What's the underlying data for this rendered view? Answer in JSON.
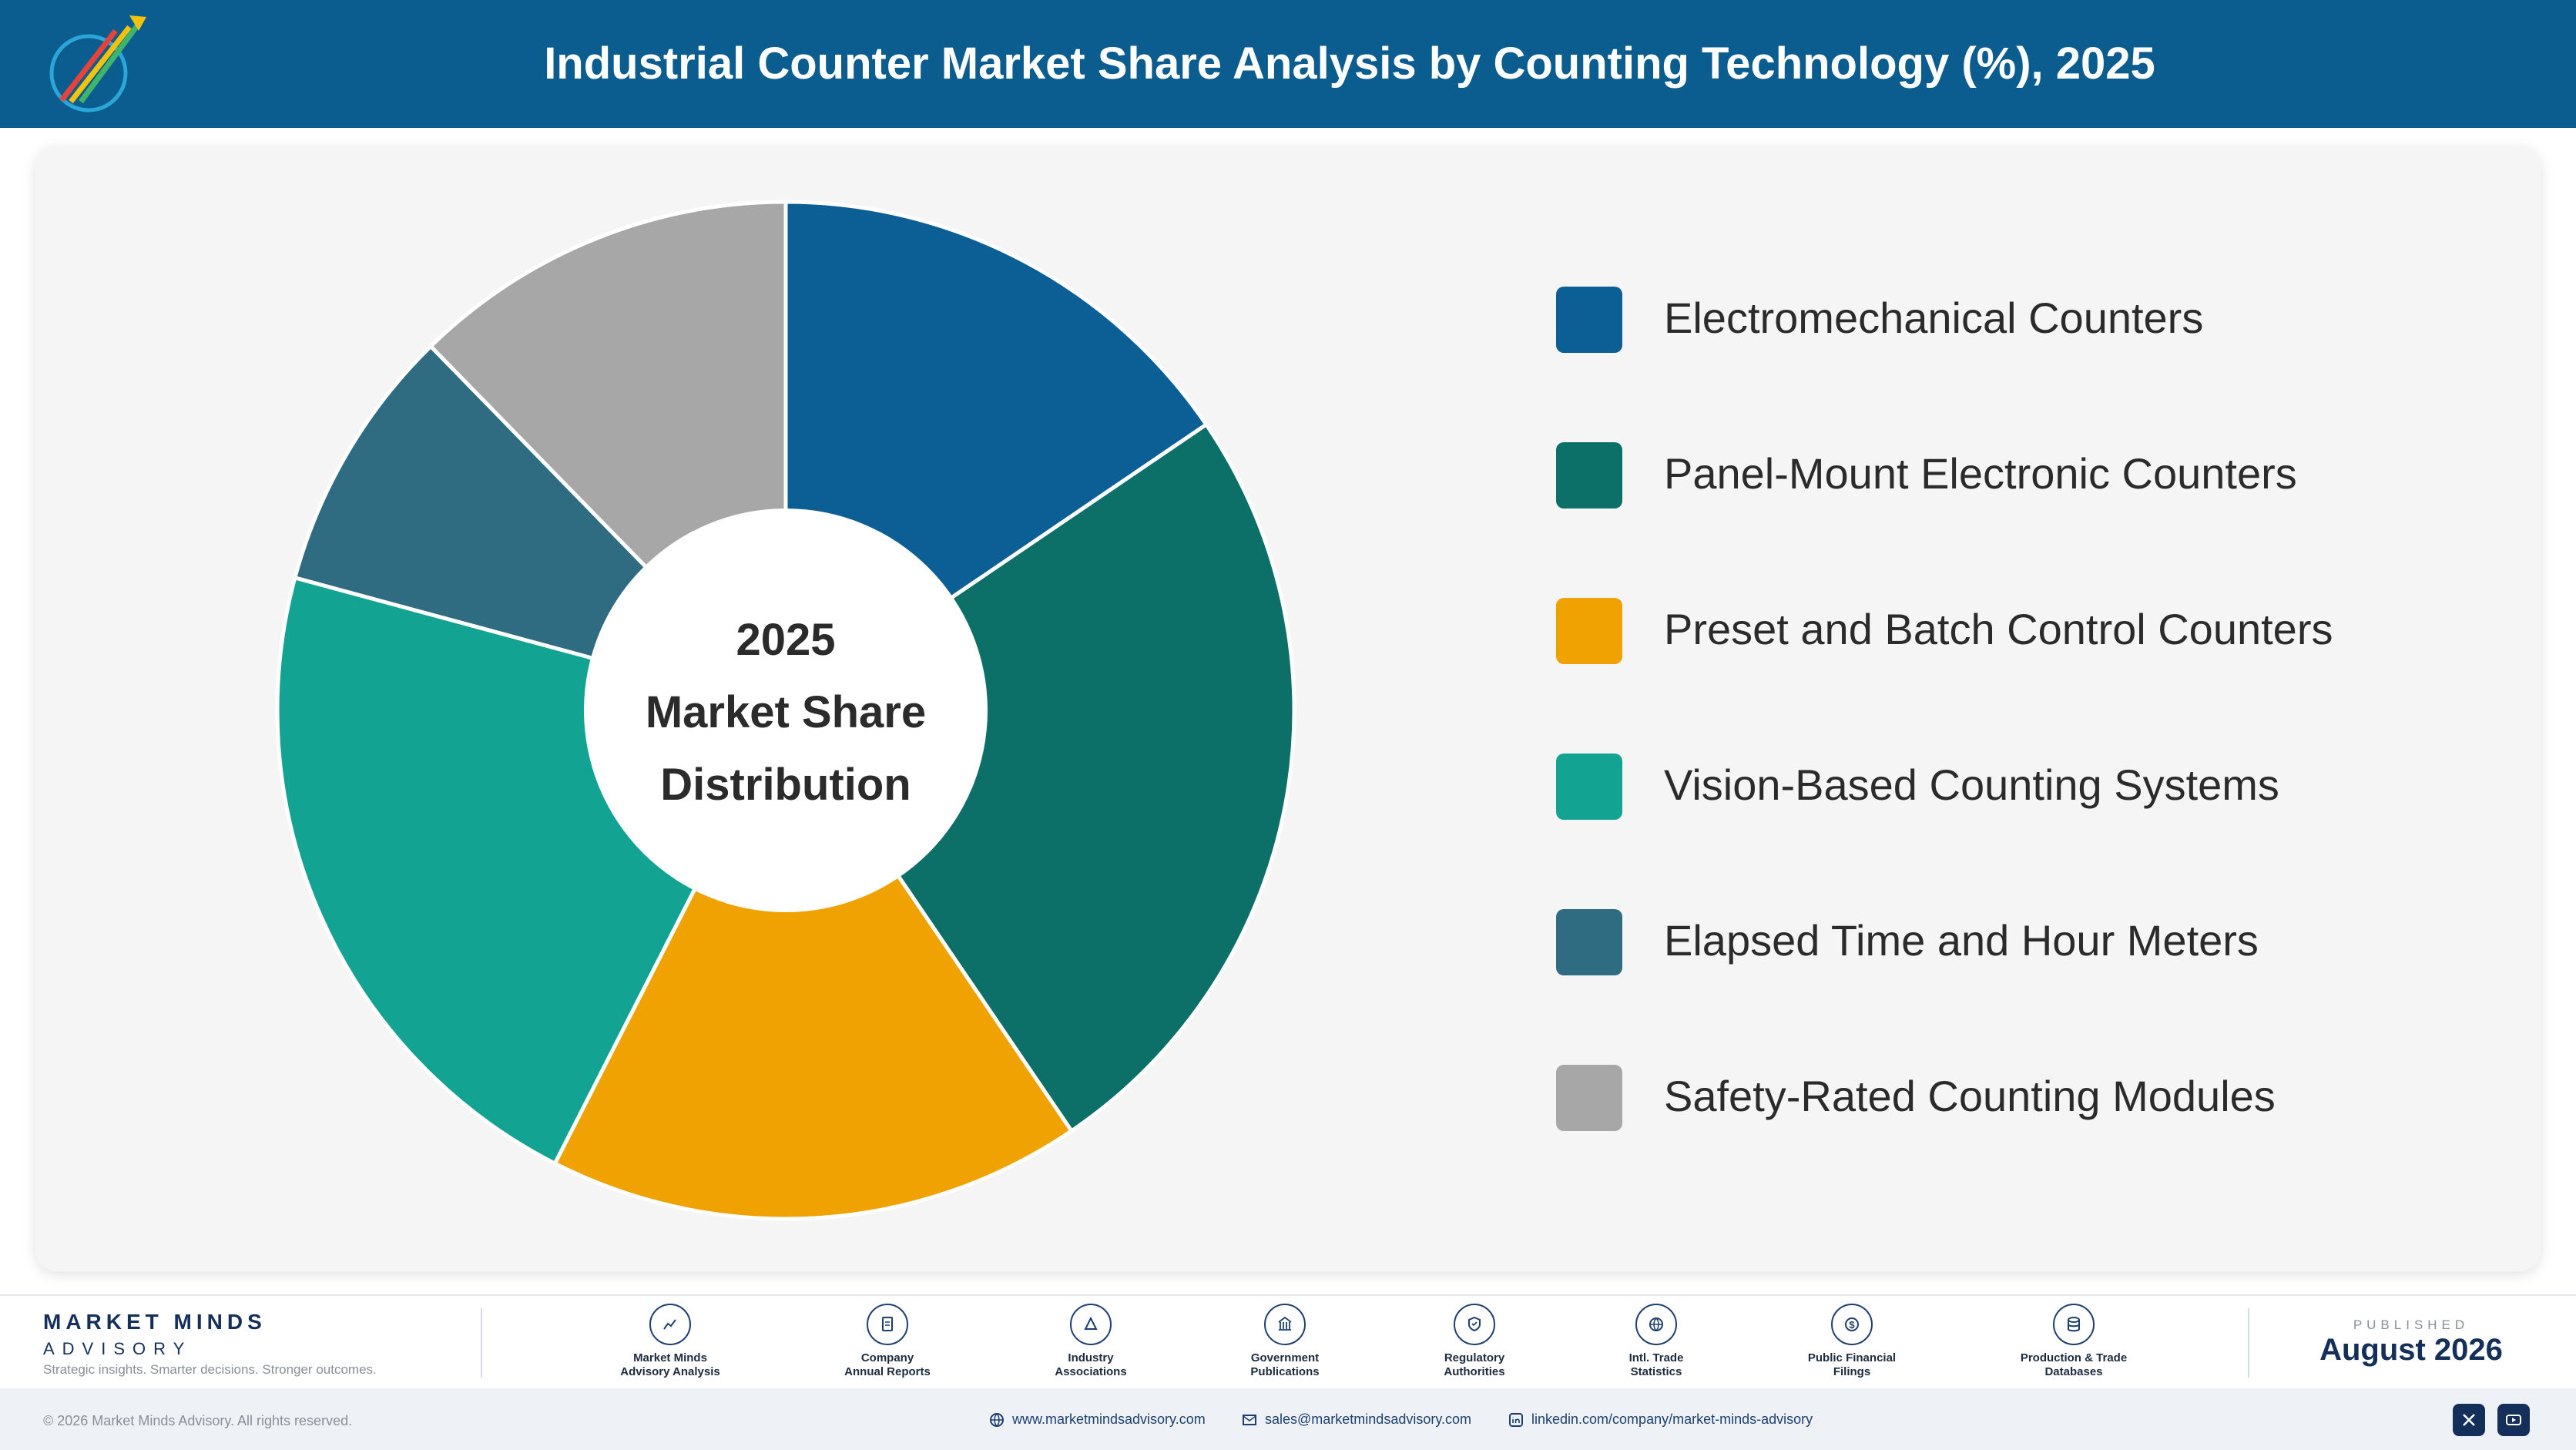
{
  "header": {
    "title": "Industrial Counter Market Share Analysis by Counting Technology (%), 2025"
  },
  "chart_data": {
    "type": "pie",
    "title": "Industrial Counter Market Share Analysis by Counting Technology (%), 2025",
    "center_label": [
      "2025",
      "Market Share",
      "Distribution"
    ],
    "categories": [
      "Electromechanical Counters",
      "Panel-Mount Electronic Counters",
      "Preset and Batch Control Counters",
      "Vision-Based Counting Systems",
      "Elapsed Time and Hour Meters",
      "Safety-Rated Counting Modules"
    ],
    "values": [
      15.5,
      25.0,
      17.0,
      21.7,
      8.5,
      12.3
    ],
    "colors": [
      "#0b5f95",
      "#0d7068",
      "#f0a202",
      "#13a392",
      "#2f6c82",
      "#a7a7a7"
    ],
    "legend_position": "right"
  },
  "footer": {
    "brand_name": "MARKET MINDS",
    "brand_sub": "ADVISORY",
    "tagline": "Strategic insights. Smarter decisions. Stronger outcomes.",
    "sources": [
      {
        "label": "Market Minds\nAdvisory Analysis",
        "icon": "chart-line-icon"
      },
      {
        "label": "Company\nAnnual Reports",
        "icon": "document-icon"
      },
      {
        "label": "Industry\nAssociations",
        "icon": "network-icon"
      },
      {
        "label": "Government\nPublications",
        "icon": "building-icon"
      },
      {
        "label": "Regulatory\nAuthorities",
        "icon": "shield-icon"
      },
      {
        "label": "Intl. Trade\nStatistics",
        "icon": "globe-icon"
      },
      {
        "label": "Public Financial\nFilings",
        "icon": "dollar-icon"
      },
      {
        "label": "Production & Trade\nDatabases",
        "icon": "database-icon"
      }
    ],
    "published_label": "PUBLISHED",
    "published_date": "August 2026",
    "copyright": "© 2026 Market Minds Advisory. All rights reserved.",
    "website": "www.marketmindsadvisory.com",
    "email": "sales@marketmindsadvisory.com",
    "linkedin": "linkedin.com/company/market-minds-advisory"
  }
}
